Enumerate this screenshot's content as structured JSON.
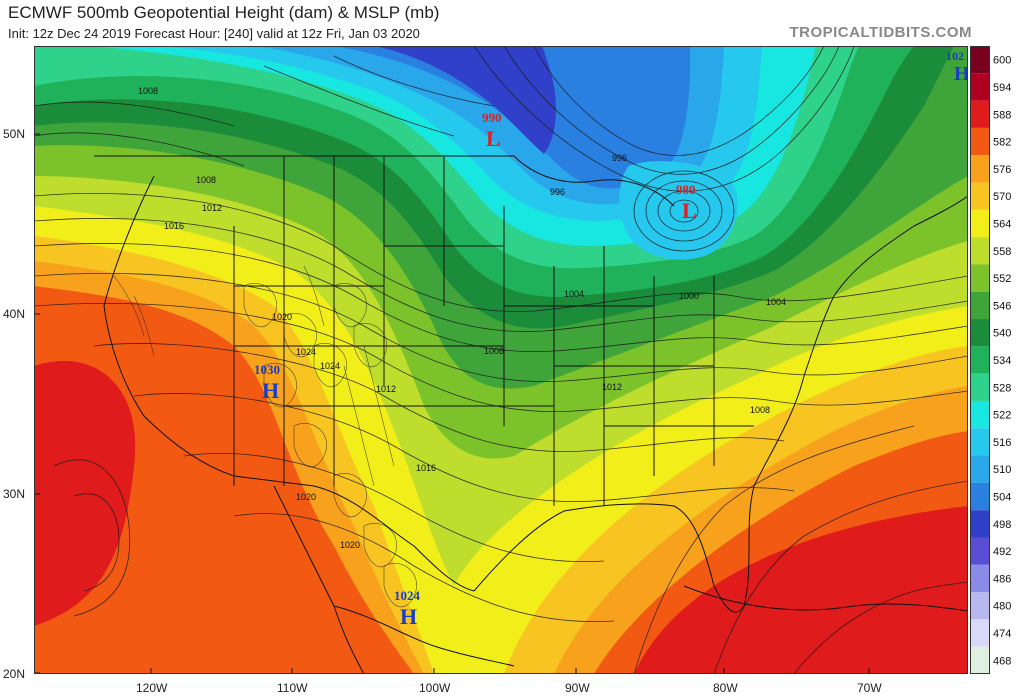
{
  "header": {
    "title": "ECMWF 500mb Geopotential Height (dam) & MSLP (mb)",
    "subtitle": "Init: 12z Dec 24 2019   Forecast Hour: [240]   valid at 12z Fri, Jan 03 2020",
    "brand": "TROPICALTIDBITS.COM"
  },
  "axes": {
    "lat_labels": [
      "50N",
      "40N",
      "30N",
      "20N"
    ],
    "lon_labels": [
      "120W",
      "110W",
      "100W",
      "90W",
      "80W",
      "70W"
    ]
  },
  "colorbar": {
    "levels": [
      "600",
      "594",
      "588",
      "582",
      "576",
      "570",
      "564",
      "558",
      "552",
      "546",
      "540",
      "534",
      "528",
      "522",
      "516",
      "510",
      "504",
      "498",
      "492",
      "486",
      "480",
      "474",
      "468"
    ],
    "colors": [
      "#7a0020",
      "#b00022",
      "#e01b1b",
      "#f25a14",
      "#f7a11c",
      "#f8c422",
      "#f2ee1a",
      "#bedd2d",
      "#7cc22a",
      "#3fa43a",
      "#1a8c3a",
      "#1fb25a",
      "#2fd28a",
      "#18e6e0",
      "#26c8ee",
      "#2aa6ea",
      "#2a80e0",
      "#3040c8",
      "#5a4ed6",
      "#8a8ae8",
      "#b8b8f0",
      "#d8d8f8",
      "#e0f0e0"
    ]
  },
  "pressure_centers": [
    {
      "type": "L",
      "value": "990",
      "color": "#e02020"
    },
    {
      "type": "L",
      "value": "980",
      "color": "#e02020"
    },
    {
      "type": "H",
      "value": "1030",
      "color": "#1a3cc8"
    },
    {
      "type": "H",
      "value": "1024",
      "color": "#1a3cc8"
    },
    {
      "type": "H",
      "value": "102",
      "color": "#1a3cc8"
    }
  ],
  "isobar_labels": [
    "1008",
    "1008",
    "1012",
    "1016",
    "1020",
    "1024",
    "1024",
    "1012",
    "1016",
    "1020",
    "1020",
    "1008",
    "1004",
    "1000",
    "996",
    "996",
    "1004",
    "1012",
    "1008"
  ]
}
